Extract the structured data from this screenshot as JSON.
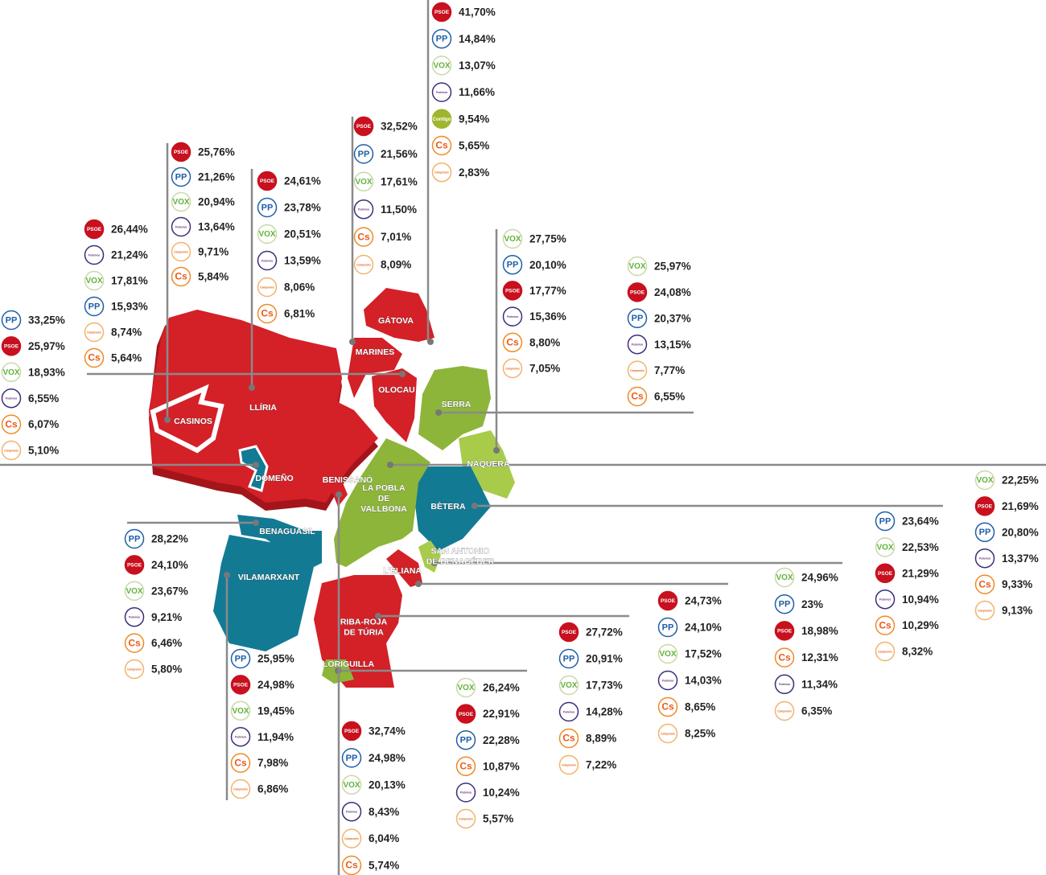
{
  "municipalities": [
    {
      "name": [
        "GÁTOVA"
      ],
      "results": [
        {
          "party": "PSOE",
          "pct": "41,70%"
        },
        {
          "party": "PP",
          "pct": "14,84%"
        },
        {
          "party": "VOX",
          "pct": "13,07%"
        },
        {
          "party": "Podemos",
          "pct": "11,66%"
        },
        {
          "party": "Contigo",
          "pct": "9,54%"
        },
        {
          "party": "Cs",
          "pct": "5,65%"
        },
        {
          "party": "Compromís",
          "pct": "2,83%"
        }
      ]
    },
    {
      "name": [
        "MARINES"
      ],
      "results": [
        {
          "party": "PSOE",
          "pct": "32,52%"
        },
        {
          "party": "PP",
          "pct": "21,56%"
        },
        {
          "party": "VOX",
          "pct": "17,61%"
        },
        {
          "party": "Podemos",
          "pct": "11,50%"
        },
        {
          "party": "Cs",
          "pct": "7,01%"
        },
        {
          "party": "Compromís",
          "pct": "8,09%"
        }
      ]
    },
    {
      "name": [
        "CASINOS"
      ],
      "results": [
        {
          "party": "PSOE",
          "pct": "25,76%"
        },
        {
          "party": "PP",
          "pct": "21,26%"
        },
        {
          "party": "VOX",
          "pct": "20,94%"
        },
        {
          "party": "Podemos",
          "pct": "13,64%"
        },
        {
          "party": "Compromís",
          "pct": "9,71%"
        },
        {
          "party": "Cs",
          "pct": "5,84%"
        }
      ]
    },
    {
      "name": [
        "LLÍRIA"
      ],
      "results": [
        {
          "party": "PSOE",
          "pct": "24,61%"
        },
        {
          "party": "PP",
          "pct": "23,78%"
        },
        {
          "party": "VOX",
          "pct": "20,51%"
        },
        {
          "party": "Podemos",
          "pct": "13,59%"
        },
        {
          "party": "Compromís",
          "pct": "8,06%"
        },
        {
          "party": "Cs",
          "pct": "6,81%"
        }
      ]
    },
    {
      "name": [
        "OLOCAU"
      ],
      "results": [
        {
          "party": "PSOE",
          "pct": "26,44%"
        },
        {
          "party": "Podemos",
          "pct": "21,24%"
        },
        {
          "party": "VOX",
          "pct": "17,81%"
        },
        {
          "party": "PP",
          "pct": "15,93%"
        },
        {
          "party": "Compromís",
          "pct": "8,74%"
        },
        {
          "party": "Cs",
          "pct": "5,64%"
        }
      ]
    },
    {
      "name": [
        "DOMEÑO"
      ],
      "results": [
        {
          "party": "PP",
          "pct": "33,25%"
        },
        {
          "party": "PSOE",
          "pct": "25,97%"
        },
        {
          "party": "VOX",
          "pct": "18,93%"
        },
        {
          "party": "Podemos",
          "pct": "6,55%"
        },
        {
          "party": "Cs",
          "pct": "6,07%"
        },
        {
          "party": "Compromís",
          "pct": "5,10%"
        }
      ]
    },
    {
      "name": [
        "NÀQUERA"
      ],
      "results": [
        {
          "party": "VOX",
          "pct": "27,75%"
        },
        {
          "party": "PP",
          "pct": "20,10%"
        },
        {
          "party": "PSOE",
          "pct": "17,77%"
        },
        {
          "party": "Podemos",
          "pct": "15,36%"
        },
        {
          "party": "Cs",
          "pct": "8,80%"
        },
        {
          "party": "Compromís",
          "pct": "7,05%"
        }
      ]
    },
    {
      "name": [
        "SERRA"
      ],
      "results": [
        {
          "party": "VOX",
          "pct": "25,97%"
        },
        {
          "party": "PSOE",
          "pct": "24,08%"
        },
        {
          "party": "PP",
          "pct": "20,37%"
        },
        {
          "party": "Podemos",
          "pct": "13,15%"
        },
        {
          "party": "Compromís",
          "pct": "7,77%"
        },
        {
          "party": "Cs",
          "pct": "6,55%"
        }
      ]
    },
    {
      "name": [
        "LA POBLA",
        "DE",
        "VALLBONA"
      ],
      "results": [
        {
          "party": "VOX",
          "pct": "22,25%"
        },
        {
          "party": "PSOE",
          "pct": "21,69%"
        },
        {
          "party": "PP",
          "pct": "20,80%"
        },
        {
          "party": "Podemos",
          "pct": "13,37%"
        },
        {
          "party": "Cs",
          "pct": "9,33%"
        },
        {
          "party": "Compromís",
          "pct": "9,13%"
        }
      ]
    },
    {
      "name": [
        "BÈTERA"
      ],
      "results": [
        {
          "party": "PP",
          "pct": "23,64%"
        },
        {
          "party": "VOX",
          "pct": "22,53%"
        },
        {
          "party": "PSOE",
          "pct": "21,29%"
        },
        {
          "party": "Podemos",
          "pct": "10,94%"
        },
        {
          "party": "Cs",
          "pct": "10,29%"
        },
        {
          "party": "Compromís",
          "pct": "8,32%"
        }
      ]
    },
    {
      "name": [
        "SAN ANTONIO",
        "DE BENAGÉBER"
      ],
      "results": [
        {
          "party": "VOX",
          "pct": "24,96%"
        },
        {
          "party": "PP",
          "pct": "23%"
        },
        {
          "party": "PSOE",
          "pct": "18,98%"
        },
        {
          "party": "Cs",
          "pct": "12,31%"
        },
        {
          "party": "Podemos",
          "pct": "11,34%"
        },
        {
          "party": "Compromís",
          "pct": "6,35%"
        }
      ]
    },
    {
      "name": [
        "L'ELIANA"
      ],
      "results": [
        {
          "party": "PSOE",
          "pct": "24,73%"
        },
        {
          "party": "PP",
          "pct": "24,10%"
        },
        {
          "party": "VOX",
          "pct": "17,52%"
        },
        {
          "party": "Podemos",
          "pct": "14,03%"
        },
        {
          "party": "Cs",
          "pct": "8,65%"
        },
        {
          "party": "Compromís",
          "pct": "8,25%"
        }
      ]
    },
    {
      "name": [
        "RIBA-ROJA",
        "DE TÚRIA"
      ],
      "results": [
        {
          "party": "PSOE",
          "pct": "27,72%"
        },
        {
          "party": "PP",
          "pct": "20,91%"
        },
        {
          "party": "VOX",
          "pct": "17,73%"
        },
        {
          "party": "Podemos",
          "pct": "14,28%"
        },
        {
          "party": "Cs",
          "pct": "8,89%"
        },
        {
          "party": "Compromís",
          "pct": "7,22%"
        }
      ]
    },
    {
      "name": [
        "LORIGUILLA"
      ],
      "results": [
        {
          "party": "VOX",
          "pct": "26,24%"
        },
        {
          "party": "PSOE",
          "pct": "22,91%"
        },
        {
          "party": "PP",
          "pct": "22,28%"
        },
        {
          "party": "Cs",
          "pct": "10,87%"
        },
        {
          "party": "Podemos",
          "pct": "10,24%"
        },
        {
          "party": "Compromís",
          "pct": "5,57%"
        }
      ]
    },
    {
      "name": [
        "BENISSANÓ"
      ],
      "results": [
        {
          "party": "PSOE",
          "pct": "32,74%"
        },
        {
          "party": "PP",
          "pct": "24,98%"
        },
        {
          "party": "VOX",
          "pct": "20,13%"
        },
        {
          "party": "Podemos",
          "pct": "8,43%"
        },
        {
          "party": "Compromís",
          "pct": "6,04%"
        },
        {
          "party": "Cs",
          "pct": "5,74%"
        }
      ]
    },
    {
      "name": [
        "VILAMARXANT"
      ],
      "results": [
        {
          "party": "PP",
          "pct": "25,95%"
        },
        {
          "party": "PSOE",
          "pct": "24,98%"
        },
        {
          "party": "VOX",
          "pct": "19,45%"
        },
        {
          "party": "Podemos",
          "pct": "11,94%"
        },
        {
          "party": "Cs",
          "pct": "7,98%"
        },
        {
          "party": "Compromís",
          "pct": "6,86%"
        }
      ]
    },
    {
      "name": [
        "BENAGUASIL"
      ],
      "results": [
        {
          "party": "PP",
          "pct": "28,22%"
        },
        {
          "party": "PSOE",
          "pct": "24,10%"
        },
        {
          "party": "VOX",
          "pct": "23,67%"
        },
        {
          "party": "Podemos",
          "pct": "9,21%"
        },
        {
          "party": "Cs",
          "pct": "6,46%"
        },
        {
          "party": "Compromís",
          "pct": "5,80%"
        }
      ]
    }
  ]
}
